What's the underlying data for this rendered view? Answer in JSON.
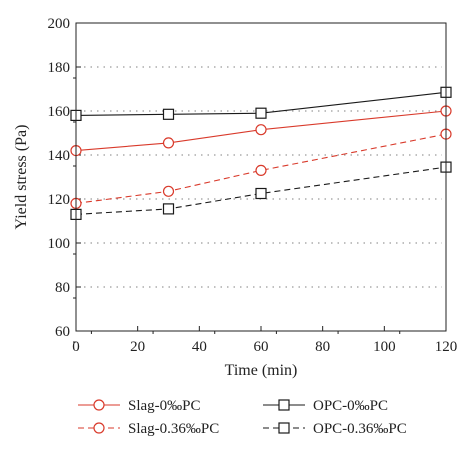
{
  "chart_data": {
    "type": "line",
    "xlabel": "Time (min)",
    "ylabel": "Yield stress (Pa)",
    "xlim": [
      0,
      120
    ],
    "ylim": [
      60,
      200
    ],
    "xticks": [
      0,
      20,
      40,
      60,
      80,
      100,
      120
    ],
    "yticks": [
      60,
      80,
      100,
      120,
      140,
      160,
      180,
      200
    ],
    "grid": "horizontal dotted",
    "legend_position": "bottom",
    "x": [
      0,
      30,
      60,
      120
    ],
    "series": [
      {
        "name": "Slag-0‰PC",
        "values": [
          142,
          145.5,
          151.5,
          160
        ],
        "color": "#d93a2b",
        "marker": "circle",
        "line": "solid"
      },
      {
        "name": "Slag-0.36‰PC",
        "values": [
          118,
          123.5,
          133,
          149.5
        ],
        "color": "#d93a2b",
        "marker": "circle",
        "line": "dashed"
      },
      {
        "name": "OPC-0‰PC",
        "values": [
          158,
          158.5,
          159,
          168.5
        ],
        "color": "#1a1a1a",
        "marker": "square",
        "line": "solid"
      },
      {
        "name": "OPC-0.36‰PC",
        "values": [
          113,
          115.5,
          122.5,
          134.5
        ],
        "color": "#1a1a1a",
        "marker": "square",
        "line": "dashed"
      }
    ]
  }
}
